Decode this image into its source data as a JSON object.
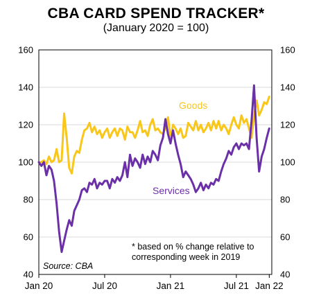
{
  "chart_data": {
    "type": "line",
    "title": "CBA CARD SPEND TRACKER*",
    "subtitle": "(January 2020 = 100)",
    "y_left": {
      "min": 40,
      "max": 160,
      "ticks": [
        40,
        60,
        80,
        100,
        120,
        140,
        160
      ]
    },
    "y_right": {
      "min": 40,
      "max": 160,
      "ticks": [
        40,
        60,
        80,
        100,
        120,
        140,
        160
      ]
    },
    "x_ticks": [
      "Jan 20",
      "Jul 20",
      "Jan 21",
      "Jul 21",
      "Jan 22"
    ],
    "grid": "horizontal",
    "series": [
      {
        "name": "Goods",
        "color": "#f9c61a",
        "values": [
          [
            0,
            100
          ],
          [
            1,
            100
          ],
          [
            2,
            101
          ],
          [
            3,
            99
          ],
          [
            4,
            103
          ],
          [
            5,
            100
          ],
          [
            6,
            101
          ],
          [
            7,
            107
          ],
          [
            8,
            100
          ],
          [
            9,
            101
          ],
          [
            10,
            126
          ],
          [
            11,
            113
          ],
          [
            12,
            97
          ],
          [
            13,
            94
          ],
          [
            14,
            103
          ],
          [
            15,
            106
          ],
          [
            16,
            105
          ],
          [
            17,
            112
          ],
          [
            18,
            117
          ],
          [
            19,
            118
          ],
          [
            20,
            121
          ],
          [
            21,
            116
          ],
          [
            22,
            119
          ],
          [
            23,
            115
          ],
          [
            24,
            117
          ],
          [
            25,
            113
          ],
          [
            26,
            116
          ],
          [
            27,
            118
          ],
          [
            28,
            113
          ],
          [
            29,
            116
          ],
          [
            30,
            118
          ],
          [
            31,
            114
          ],
          [
            32,
            118
          ],
          [
            33,
            117
          ],
          [
            34,
            112
          ],
          [
            35,
            119
          ],
          [
            36,
            116
          ],
          [
            37,
            116
          ],
          [
            38,
            113
          ],
          [
            39,
            117
          ],
          [
            40,
            122
          ],
          [
            41,
            116
          ],
          [
            42,
            117
          ],
          [
            43,
            114
          ],
          [
            44,
            120
          ],
          [
            45,
            123
          ],
          [
            46,
            117
          ],
          [
            47,
            118
          ],
          [
            48,
            116
          ],
          [
            49,
            115
          ],
          [
            50,
            118
          ],
          [
            51,
            124
          ],
          [
            52,
            113
          ],
          [
            53,
            120
          ],
          [
            54,
            118
          ],
          [
            55,
            115
          ],
          [
            56,
            118
          ],
          [
            57,
            113
          ],
          [
            58,
            114
          ],
          [
            59,
            121
          ],
          [
            60,
            119
          ],
          [
            61,
            117
          ],
          [
            62,
            122
          ],
          [
            63,
            117
          ],
          [
            64,
            120
          ],
          [
            65,
            116
          ],
          [
            66,
            118
          ],
          [
            67,
            121
          ],
          [
            68,
            117
          ],
          [
            69,
            122
          ],
          [
            70,
            118
          ],
          [
            71,
            122
          ],
          [
            72,
            117
          ],
          [
            73,
            120
          ],
          [
            74,
            118
          ],
          [
            75,
            115
          ],
          [
            76,
            120
          ],
          [
            77,
            124
          ],
          [
            78,
            120
          ],
          [
            79,
            118
          ],
          [
            80,
            125
          ],
          [
            81,
            121
          ],
          [
            82,
            123
          ],
          [
            83,
            118
          ],
          [
            84,
            113
          ],
          [
            85,
            125
          ],
          [
            86,
            133
          ],
          [
            87,
            125
          ],
          [
            88,
            128
          ],
          [
            89,
            132
          ],
          [
            90,
            131
          ],
          [
            91,
            135
          ]
        ]
      },
      {
        "name": "Services",
        "color": "#6b2fa7",
        "values": [
          [
            0,
            100
          ],
          [
            1,
            98
          ],
          [
            2,
            100
          ],
          [
            3,
            93
          ],
          [
            4,
            98
          ],
          [
            5,
            96
          ],
          [
            6,
            90
          ],
          [
            7,
            78
          ],
          [
            8,
            63
          ],
          [
            9,
            52
          ],
          [
            10,
            58
          ],
          [
            11,
            64
          ],
          [
            12,
            69
          ],
          [
            13,
            66
          ],
          [
            14,
            74
          ],
          [
            15,
            77
          ],
          [
            16,
            80
          ],
          [
            17,
            85
          ],
          [
            18,
            86
          ],
          [
            19,
            84
          ],
          [
            20,
            89
          ],
          [
            21,
            88
          ],
          [
            22,
            91
          ],
          [
            23,
            86
          ],
          [
            24,
            89
          ],
          [
            25,
            88
          ],
          [
            26,
            90
          ],
          [
            27,
            90
          ],
          [
            28,
            86
          ],
          [
            29,
            91
          ],
          [
            30,
            89
          ],
          [
            31,
            92
          ],
          [
            32,
            90
          ],
          [
            33,
            93
          ],
          [
            34,
            100
          ],
          [
            35,
            92
          ],
          [
            36,
            104
          ],
          [
            37,
            98
          ],
          [
            38,
            102
          ],
          [
            39,
            100
          ],
          [
            40,
            97
          ],
          [
            41,
            104
          ],
          [
            42,
            99
          ],
          [
            43,
            103
          ],
          [
            44,
            100
          ],
          [
            45,
            106
          ],
          [
            46,
            104
          ],
          [
            47,
            101
          ],
          [
            48,
            109
          ],
          [
            49,
            113
          ],
          [
            50,
            123
          ],
          [
            51,
            115
          ],
          [
            52,
            110
          ],
          [
            53,
            117
          ],
          [
            54,
            110
          ],
          [
            55,
            104
          ],
          [
            56,
            99
          ],
          [
            57,
            92
          ],
          [
            58,
            95
          ],
          [
            59,
            93
          ],
          [
            60,
            91
          ],
          [
            61,
            88
          ],
          [
            62,
            84
          ],
          [
            63,
            86
          ],
          [
            64,
            89
          ],
          [
            65,
            85
          ],
          [
            66,
            88
          ],
          [
            67,
            86
          ],
          [
            68,
            89
          ],
          [
            69,
            88
          ],
          [
            70,
            91
          ],
          [
            71,
            90
          ],
          [
            72,
            95
          ],
          [
            73,
            99
          ],
          [
            74,
            102
          ],
          [
            75,
            106
          ],
          [
            76,
            104
          ],
          [
            77,
            108
          ],
          [
            78,
            110
          ],
          [
            79,
            107
          ],
          [
            80,
            110
          ],
          [
            81,
            109
          ],
          [
            82,
            110
          ],
          [
            83,
            107
          ],
          [
            84,
            122
          ],
          [
            85,
            141
          ],
          [
            86,
            113
          ],
          [
            87,
            95
          ],
          [
            88,
            103
          ],
          [
            89,
            107
          ],
          [
            90,
            113
          ],
          [
            91,
            118
          ]
        ]
      }
    ],
    "annotations": {
      "goods_label": "Goods",
      "services_label": "Services",
      "note_line1": "*  based on % change relative to",
      "note_line2": "corresponding week in 2019",
      "source": "Source:  CBA"
    }
  }
}
